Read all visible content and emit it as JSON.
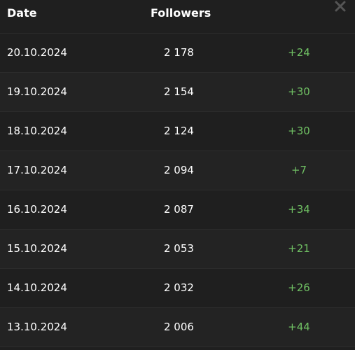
{
  "header": {
    "date_label": "Date",
    "followers_label": "Followers"
  },
  "close_icon": "close-icon",
  "colors": {
    "background": "#1f1f1f",
    "text": "#ffffff",
    "positive": "#6fbf63"
  },
  "rows": [
    {
      "date": "20.10.2024",
      "followers": "2 178",
      "delta": "+24"
    },
    {
      "date": "19.10.2024",
      "followers": "2 154",
      "delta": "+30"
    },
    {
      "date": "18.10.2024",
      "followers": "2 124",
      "delta": "+30"
    },
    {
      "date": "17.10.2024",
      "followers": "2 094",
      "delta": "+7"
    },
    {
      "date": "16.10.2024",
      "followers": "2 087",
      "delta": "+34"
    },
    {
      "date": "15.10.2024",
      "followers": "2 053",
      "delta": "+21"
    },
    {
      "date": "14.10.2024",
      "followers": "2 032",
      "delta": "+26"
    },
    {
      "date": "13.10.2024",
      "followers": "2 006",
      "delta": "+44"
    }
  ]
}
